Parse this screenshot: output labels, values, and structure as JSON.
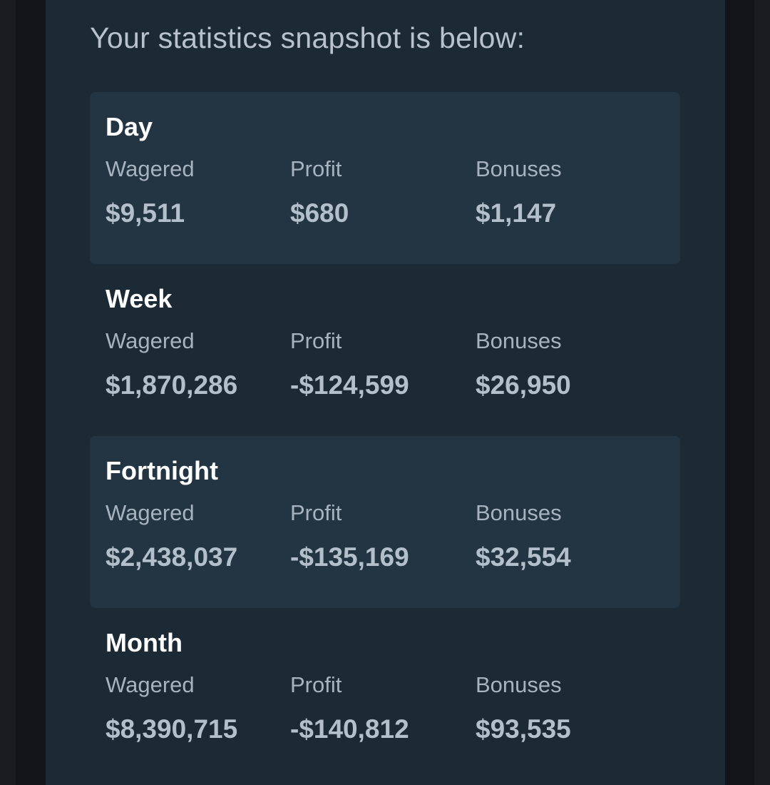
{
  "intro_text": "Your statistics snapshot is below:",
  "periods": [
    {
      "title": "Day",
      "stats": [
        {
          "label": "Wagered",
          "value": "$9,511"
        },
        {
          "label": "Profit",
          "value": "$680"
        },
        {
          "label": "Bonuses",
          "value": "$1,147"
        }
      ]
    },
    {
      "title": "Week",
      "stats": [
        {
          "label": "Wagered",
          "value": "$1,870,286"
        },
        {
          "label": "Profit",
          "value": "-$124,599"
        },
        {
          "label": "Bonuses",
          "value": "$26,950"
        }
      ]
    },
    {
      "title": "Fortnight",
      "stats": [
        {
          "label": "Wagered",
          "value": "$2,438,037"
        },
        {
          "label": "Profit",
          "value": "-$135,169"
        },
        {
          "label": "Bonuses",
          "value": "$32,554"
        }
      ]
    },
    {
      "title": "Month",
      "stats": [
        {
          "label": "Wagered",
          "value": "$8,390,715"
        },
        {
          "label": "Profit",
          "value": "-$140,812"
        },
        {
          "label": "Bonuses",
          "value": "$93,535"
        }
      ]
    }
  ]
}
